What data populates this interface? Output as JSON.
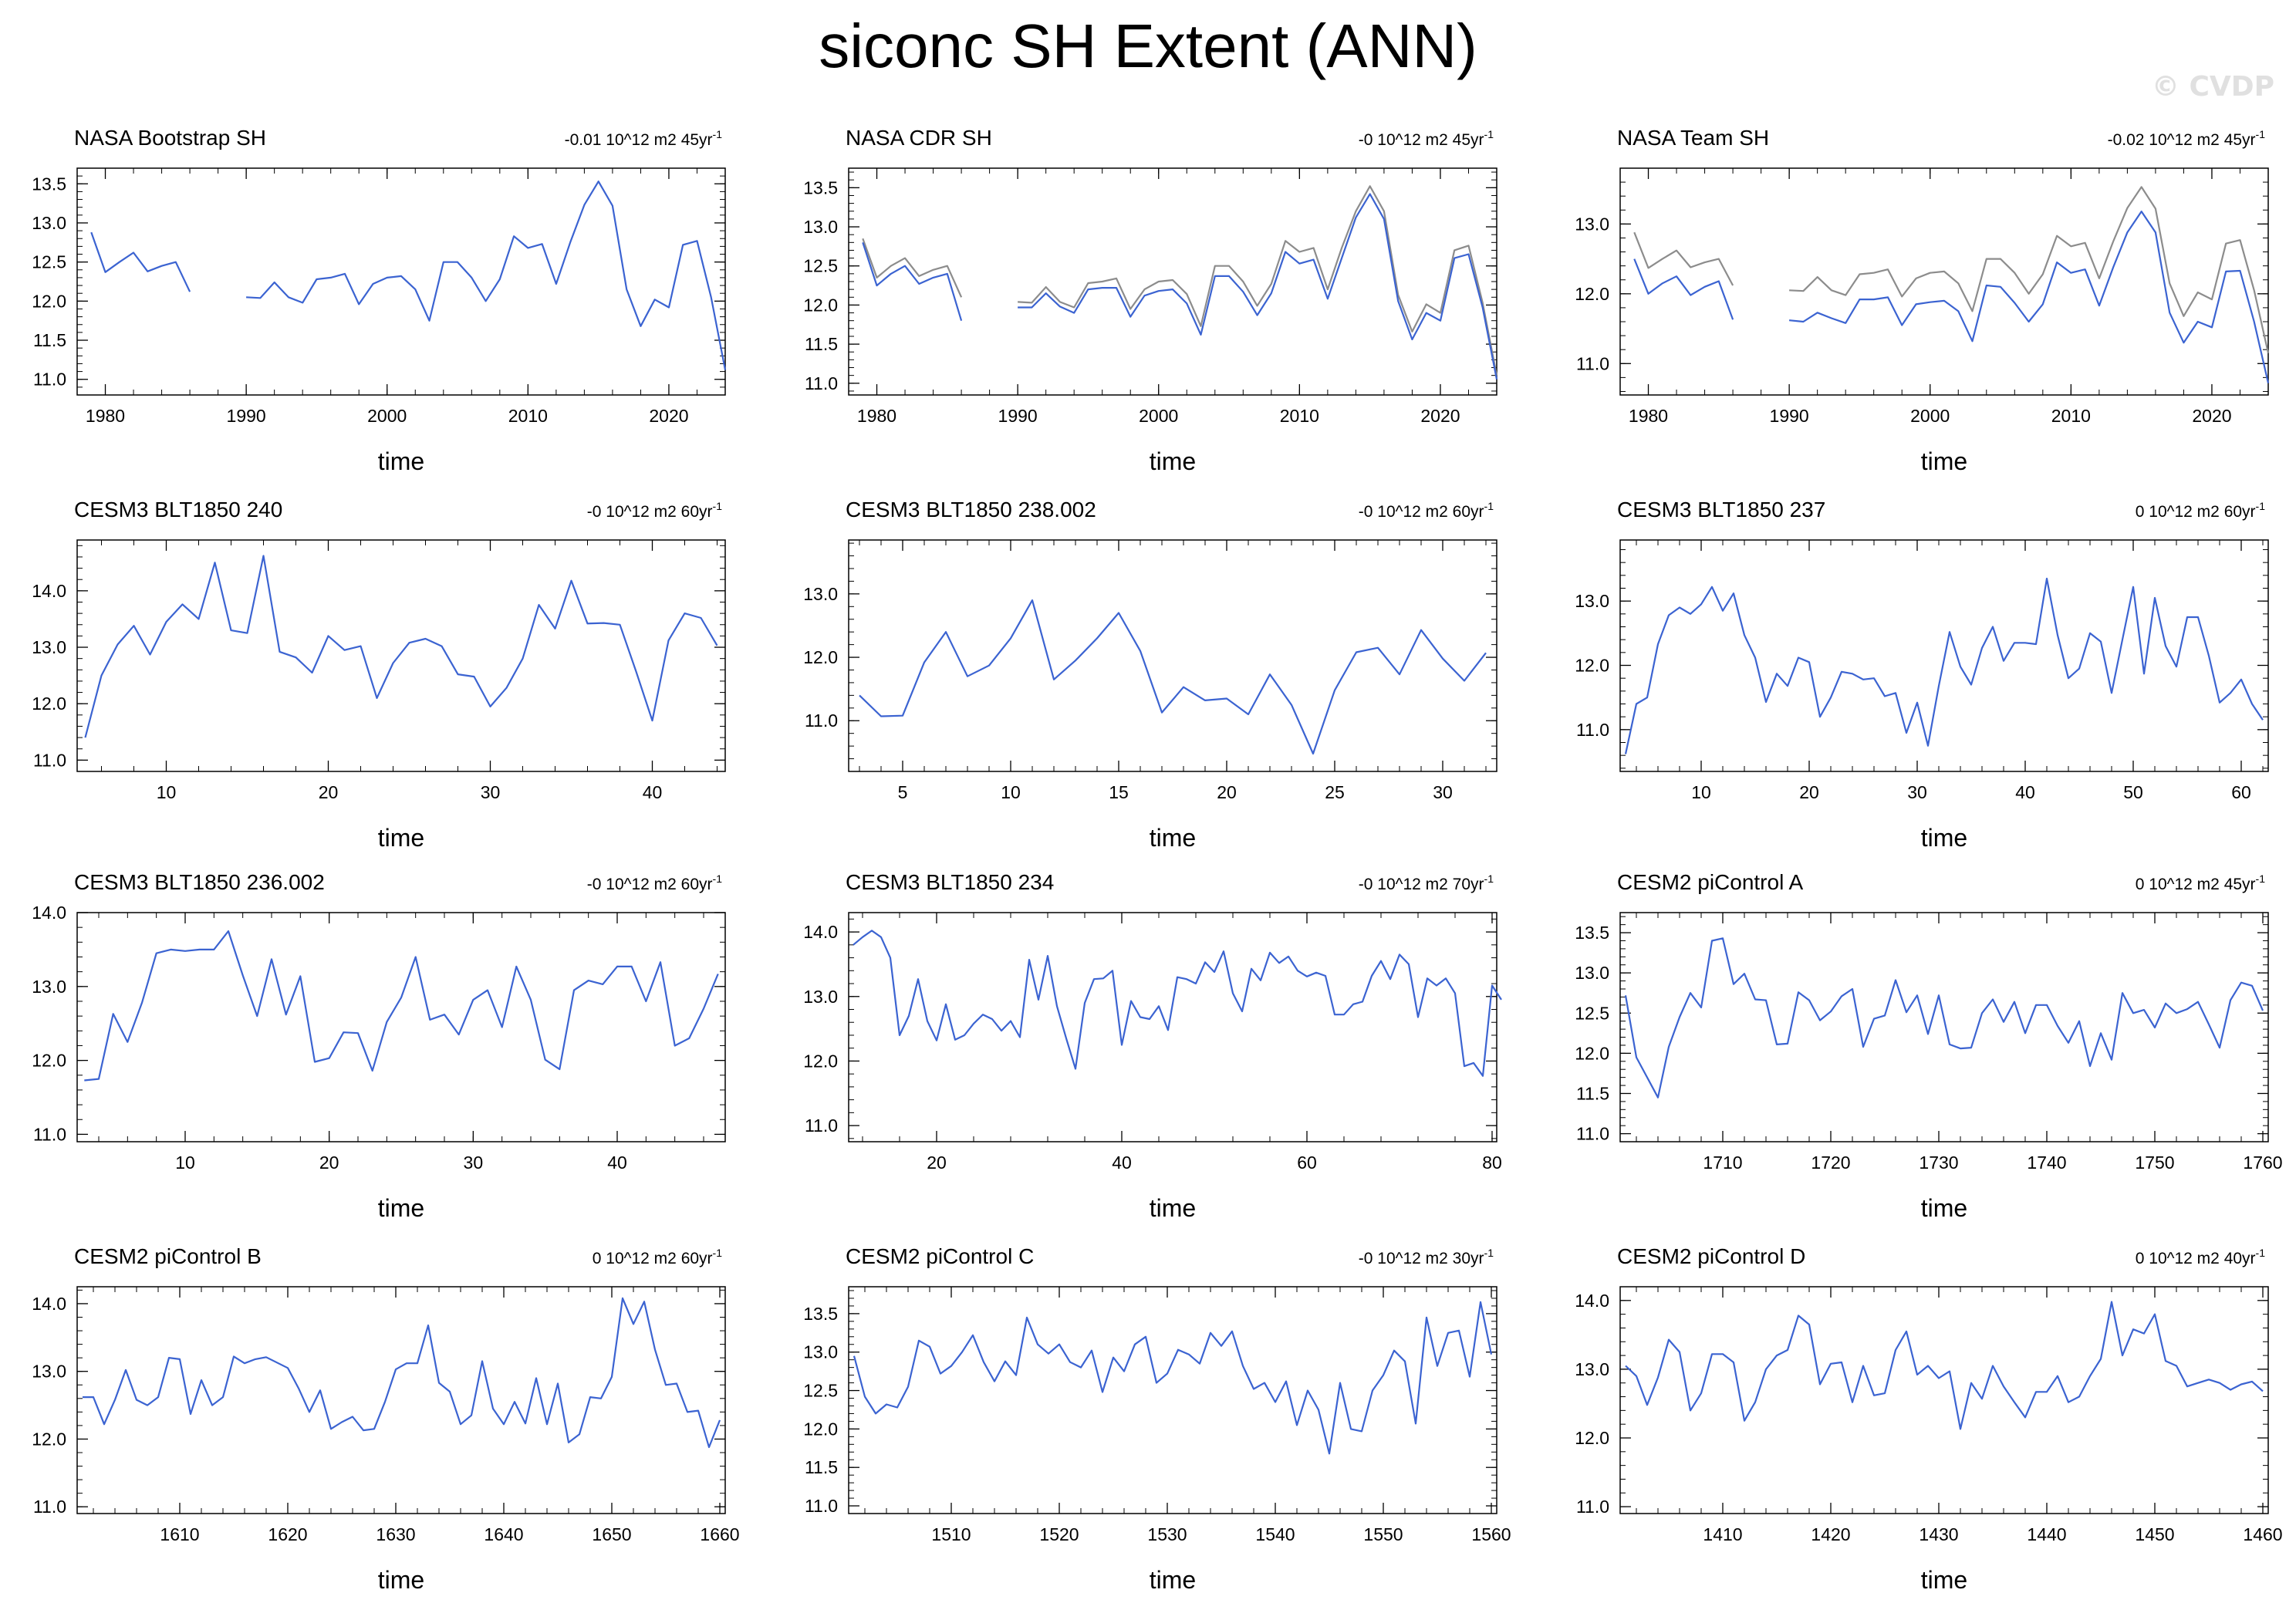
{
  "title": "siconc SH Extent (ANN)",
  "watermark": "© CVDP",
  "colors": {
    "primary": "#3b63d1",
    "secondary": "#8c8c8c",
    "axis": "#000000"
  },
  "chart_data": [
    {
      "type": "line",
      "title": "NASA Bootstrap SH",
      "trend": "-0.01 10^12 m2 45yr",
      "xlabel": "time",
      "xlim": [
        1978,
        2024
      ],
      "ylim": [
        10.8,
        13.7
      ],
      "xticks": [
        1980,
        1990,
        2000,
        2010,
        2020
      ],
      "yticks": [
        11.0,
        11.5,
        12.0,
        12.5,
        13.0,
        13.5
      ],
      "series": [
        {
          "x0": 1979,
          "values": [
            12.88,
            12.37,
            12.5,
            12.62,
            12.38,
            12.45,
            12.5,
            12.12,
            null,
            null,
            null,
            12.05,
            12.04,
            12.24,
            12.05,
            11.98,
            12.28,
            12.3,
            12.35,
            11.96,
            12.22,
            12.3,
            12.32,
            12.15,
            11.75,
            12.5,
            12.5,
            12.3,
            12.0,
            12.28,
            12.83,
            12.68,
            12.73,
            12.22,
            12.75,
            13.23,
            13.53,
            13.22,
            12.15,
            11.68,
            12.02,
            11.92,
            12.72,
            12.77,
            12.05,
            11.12
          ]
        }
      ]
    },
    {
      "type": "line",
      "title": "NASA CDR SH",
      "trend": "-0 10^12 m2 45yr",
      "xlabel": "time",
      "xlim": [
        1978,
        2024
      ],
      "ylim": [
        10.85,
        13.75
      ],
      "xticks": [
        1980,
        1990,
        2000,
        2010,
        2020
      ],
      "yticks": [
        11.0,
        11.5,
        12.0,
        12.5,
        13.0,
        13.5
      ],
      "series": [
        {
          "x0": 1979,
          "values": [
            12.85,
            12.35,
            12.5,
            12.6,
            12.37,
            12.45,
            12.5,
            12.1,
            null,
            null,
            null,
            12.04,
            12.03,
            12.23,
            12.04,
            11.97,
            12.28,
            12.3,
            12.34,
            11.95,
            12.2,
            12.3,
            12.32,
            12.14,
            11.73,
            12.5,
            12.5,
            12.3,
            11.99,
            12.27,
            12.82,
            12.68,
            12.73,
            12.2,
            12.73,
            13.2,
            13.52,
            13.2,
            12.13,
            11.66,
            12.01,
            11.9,
            12.7,
            12.76,
            12.03,
            11.1
          ]
        },
        {
          "x0": 1979,
          "values": [
            12.8,
            12.25,
            12.4,
            12.5,
            12.27,
            12.35,
            12.4,
            11.8,
            null,
            null,
            null,
            11.97,
            11.97,
            12.15,
            11.98,
            11.9,
            12.2,
            12.22,
            12.22,
            11.85,
            12.12,
            12.18,
            12.2,
            12.02,
            11.62,
            12.37,
            12.37,
            12.17,
            11.87,
            12.15,
            12.68,
            12.53,
            12.58,
            12.08,
            12.6,
            13.12,
            13.42,
            13.1,
            12.05,
            11.56,
            11.9,
            11.8,
            12.6,
            12.65,
            11.97,
            11.05
          ]
        }
      ]
    },
    {
      "type": "line",
      "title": "NASA Team SH",
      "trend": "-0.02 10^12 m2 45yr",
      "xlabel": "time",
      "xlim": [
        1978,
        2024
      ],
      "ylim": [
        10.55,
        13.8
      ],
      "xticks": [
        1980,
        1990,
        2000,
        2010,
        2020
      ],
      "yticks": [
        11.0,
        12.0,
        13.0
      ],
      "series": [
        {
          "x0": 1979,
          "values": [
            12.88,
            12.37,
            12.5,
            12.62,
            12.38,
            12.45,
            12.5,
            12.12,
            null,
            null,
            null,
            12.05,
            12.04,
            12.24,
            12.05,
            11.98,
            12.28,
            12.3,
            12.35,
            11.96,
            12.22,
            12.3,
            12.32,
            12.15,
            11.75,
            12.5,
            12.5,
            12.3,
            12.0,
            12.28,
            12.83,
            12.68,
            12.73,
            12.22,
            12.75,
            13.23,
            13.53,
            13.22,
            12.15,
            11.68,
            12.02,
            11.92,
            12.72,
            12.77,
            12.05,
            11.15
          ]
        },
        {
          "x0": 1979,
          "values": [
            12.5,
            12.0,
            12.15,
            12.25,
            11.98,
            12.1,
            12.18,
            11.63,
            null,
            null,
            null,
            11.62,
            11.6,
            11.73,
            11.65,
            11.58,
            11.92,
            11.92,
            11.95,
            11.55,
            11.85,
            11.88,
            11.9,
            11.75,
            11.32,
            12.12,
            12.1,
            11.87,
            11.6,
            11.85,
            12.45,
            12.3,
            12.35,
            11.83,
            12.38,
            12.88,
            13.18,
            12.88,
            11.73,
            11.3,
            11.6,
            11.52,
            12.32,
            12.33,
            11.6,
            10.72
          ]
        }
      ]
    },
    {
      "type": "line",
      "title": "CESM3 BLT1850 240",
      "trend": "-0 10^12 m2 60yr",
      "xlabel": "time",
      "xlim": [
        4.5,
        44.5
      ],
      "ylim": [
        10.8,
        14.9
      ],
      "xticks": [
        10,
        20,
        30,
        40
      ],
      "yticks": [
        11.0,
        12.0,
        13.0,
        14.0
      ],
      "series": [
        {
          "x0": 5,
          "values": [
            11.4,
            12.5,
            13.05,
            13.38,
            12.87,
            13.45,
            13.76,
            13.5,
            14.5,
            13.3,
            13.25,
            14.62,
            12.92,
            12.82,
            12.55,
            13.2,
            12.95,
            13.02,
            12.1,
            12.72,
            13.08,
            13.15,
            13.02,
            12.52,
            12.48,
            11.95,
            12.28,
            12.8,
            13.75,
            13.33,
            14.18,
            13.42,
            13.43,
            13.4,
            12.57,
            11.7,
            13.12,
            13.6,
            13.52,
            13.03
          ]
        }
      ]
    },
    {
      "type": "line",
      "title": "CESM3 BLT1850 238.002",
      "trend": "-0 10^12 m2 60yr",
      "xlabel": "time",
      "xlim": [
        2.5,
        32.5
      ],
      "ylim": [
        10.2,
        13.85
      ],
      "xticks": [
        5,
        10,
        15,
        20,
        25,
        30
      ],
      "yticks": [
        11.0,
        12.0,
        13.0
      ],
      "series": [
        {
          "x0": 3,
          "values": [
            11.4,
            11.07,
            11.08,
            11.92,
            12.4,
            11.7,
            11.87,
            12.3,
            12.9,
            11.65,
            11.95,
            12.3,
            12.7,
            12.1,
            11.13,
            11.53,
            11.32,
            11.35,
            11.1,
            11.73,
            11.25,
            10.48,
            11.48,
            12.08,
            12.15,
            11.73,
            12.43,
            11.98,
            11.63,
            12.07
          ]
        }
      ]
    },
    {
      "type": "line",
      "title": "CESM3 BLT1850 237",
      "trend": "0 10^12 m2 60yr",
      "xlabel": "time",
      "xlim": [
        2.5,
        62.5
      ],
      "ylim": [
        10.35,
        13.95
      ],
      "xticks": [
        10,
        20,
        30,
        40,
        50,
        60
      ],
      "yticks": [
        11.0,
        12.0,
        13.0
      ],
      "series": [
        {
          "x0": 3,
          "values": [
            10.62,
            11.4,
            11.5,
            12.33,
            12.78,
            12.9,
            12.8,
            12.95,
            13.22,
            12.85,
            13.12,
            12.47,
            12.12,
            11.43,
            11.87,
            11.68,
            12.12,
            12.05,
            11.2,
            11.5,
            11.9,
            11.87,
            11.78,
            11.8,
            11.52,
            11.57,
            10.95,
            11.42,
            10.75,
            11.68,
            12.52,
            11.98,
            11.7,
            12.27,
            12.6,
            12.07,
            12.35,
            12.35,
            12.33,
            13.35,
            12.47,
            11.8,
            11.95,
            12.5,
            12.37,
            11.57,
            12.4,
            13.22,
            11.87,
            13.05,
            12.3,
            11.98,
            12.75,
            12.75,
            12.15,
            11.42,
            11.57,
            11.78,
            11.4,
            11.15
          ]
        }
      ]
    },
    {
      "type": "line",
      "title": "CESM3 BLT1850 236.002",
      "trend": "-0 10^12 m2 60yr",
      "xlabel": "time",
      "xlim": [
        2.5,
        47.5
      ],
      "ylim": [
        10.9,
        14.0
      ],
      "xticks": [
        10,
        20,
        30,
        40
      ],
      "yticks": [
        11.0,
        12.0,
        13.0,
        14.0
      ],
      "series": [
        {
          "x0": 3,
          "values": [
            11.73,
            11.75,
            12.63,
            12.25,
            12.78,
            13.45,
            13.5,
            13.48,
            13.5,
            13.5,
            13.75,
            13.15,
            12.6,
            13.37,
            12.62,
            13.14,
            11.98,
            12.03,
            12.38,
            12.37,
            11.86,
            12.52,
            12.85,
            13.4,
            12.55,
            12.62,
            12.35,
            12.82,
            12.95,
            12.45,
            13.27,
            12.82,
            12.01,
            11.88,
            12.95,
            13.08,
            13.03,
            13.27,
            13.27,
            12.8,
            13.33,
            12.2,
            12.3,
            12.7,
            13.17
          ]
        }
      ]
    },
    {
      "type": "line",
      "title": "CESM3 BLT1850 234",
      "trend": "-0 10^12 m2 70yr",
      "xlabel": "time",
      "xlim": [
        10.5,
        80.5
      ],
      "ylim": [
        10.75,
        14.3
      ],
      "xticks": [
        20,
        40,
        60,
        80
      ],
      "yticks": [
        11.0,
        12.0,
        13.0,
        14.0
      ],
      "series": [
        {
          "x0": 11,
          "values": [
            13.8,
            13.92,
            14.02,
            13.92,
            13.6,
            12.4,
            12.7,
            13.27,
            12.62,
            12.32,
            12.88,
            12.33,
            12.4,
            12.58,
            12.72,
            12.65,
            12.47,
            12.62,
            12.37,
            13.57,
            12.95,
            13.63,
            12.85,
            12.35,
            11.88,
            12.9,
            13.27,
            13.28,
            13.4,
            12.25,
            12.93,
            12.68,
            12.65,
            12.85,
            12.48,
            13.3,
            13.27,
            13.2,
            13.53,
            13.38,
            13.7,
            13.05,
            12.77,
            13.43,
            13.25,
            13.68,
            13.52,
            13.62,
            13.4,
            13.31,
            13.37,
            13.32,
            12.72,
            12.72,
            12.88,
            12.92,
            13.32,
            13.55,
            13.27,
            13.65,
            13.5,
            12.68,
            13.28,
            13.17,
            13.28,
            13.05,
            11.92,
            11.97,
            11.77,
            13.17,
            12.95
          ]
        }
      ]
    },
    {
      "type": "line",
      "title": "CESM2 piControl A",
      "trend": "0 10^12 m2 45yr",
      "xlabel": "time",
      "xlim": [
        1700.5,
        1760.5
      ],
      "ylim": [
        10.9,
        13.75
      ],
      "xticks": [
        1710,
        1720,
        1730,
        1740,
        1750,
        1760
      ],
      "yticks": [
        11.0,
        11.5,
        12.0,
        12.5,
        13.0,
        13.5
      ],
      "series": [
        {
          "x0": 1701,
          "values": [
            12.72,
            11.95,
            11.7,
            11.45,
            12.08,
            12.45,
            12.75,
            12.57,
            13.4,
            13.43,
            12.86,
            12.99,
            12.67,
            12.66,
            12.11,
            12.12,
            12.76,
            12.66,
            12.41,
            12.52,
            12.71,
            12.8,
            12.08,
            12.43,
            12.47,
            12.91,
            12.51,
            12.72,
            12.24,
            12.72,
            12.11,
            12.06,
            12.07,
            12.5,
            12.67,
            12.39,
            12.64,
            12.25,
            12.6,
            12.6,
            12.34,
            12.13,
            12.4,
            11.84,
            12.25,
            11.92,
            12.75,
            12.5,
            12.54,
            12.32,
            12.62,
            12.5,
            12.55,
            12.64,
            12.36,
            12.07,
            12.66,
            12.88,
            12.84,
            12.53
          ]
        }
      ]
    },
    {
      "type": "line",
      "title": "CESM2 piControl B",
      "trend": "0 10^12 m2 60yr",
      "xlabel": "time",
      "xlim": [
        1600.5,
        1660.5
      ],
      "ylim": [
        10.9,
        14.25
      ],
      "xticks": [
        1610,
        1620,
        1630,
        1640,
        1650,
        1660
      ],
      "yticks": [
        11.0,
        12.0,
        13.0,
        14.0
      ],
      "series": [
        {
          "x0": 1601,
          "values": [
            12.62,
            12.62,
            12.22,
            12.58,
            13.02,
            12.58,
            12.5,
            12.62,
            13.2,
            13.18,
            12.37,
            12.87,
            12.5,
            12.62,
            13.22,
            13.12,
            13.18,
            13.21,
            13.13,
            13.05,
            12.75,
            12.4,
            12.72,
            12.15,
            12.25,
            12.33,
            12.13,
            12.15,
            12.55,
            13.03,
            13.12,
            13.12,
            13.68,
            12.83,
            12.7,
            12.22,
            12.35,
            13.15,
            12.45,
            12.22,
            12.55,
            12.23,
            12.9,
            12.22,
            12.82,
            11.95,
            12.07,
            12.62,
            12.6,
            12.92,
            14.08,
            13.7,
            14.03,
            13.32,
            12.8,
            12.82,
            12.4,
            12.42,
            11.88,
            12.28
          ]
        }
      ]
    },
    {
      "type": "line",
      "title": "CESM2 piControl C",
      "trend": "-0 10^12 m2 30yr",
      "xlabel": "time",
      "xlim": [
        1500.5,
        1560.5
      ],
      "ylim": [
        10.9,
        13.85
      ],
      "xticks": [
        1510,
        1520,
        1530,
        1540,
        1550,
        1560
      ],
      "yticks": [
        11.0,
        11.5,
        12.0,
        12.5,
        13.0,
        13.5
      ],
      "series": [
        {
          "x0": 1501,
          "values": [
            12.95,
            12.42,
            12.2,
            12.32,
            12.28,
            12.55,
            13.15,
            13.07,
            12.72,
            12.82,
            13.0,
            13.22,
            12.87,
            12.62,
            12.88,
            12.7,
            13.45,
            13.1,
            12.98,
            13.1,
            12.87,
            12.8,
            13.02,
            12.48,
            12.93,
            12.75,
            13.1,
            13.2,
            12.6,
            12.72,
            13.03,
            12.97,
            12.85,
            13.25,
            13.08,
            13.27,
            12.82,
            12.52,
            12.6,
            12.35,
            12.62,
            12.05,
            12.5,
            12.25,
            11.68,
            12.6,
            12.0,
            11.97,
            12.5,
            12.7,
            13.02,
            12.88,
            12.07,
            13.45,
            12.82,
            13.25,
            13.28,
            12.68,
            13.65,
            12.97
          ]
        }
      ]
    },
    {
      "type": "line",
      "title": "CESM2 piControl D",
      "trend": "0 10^12 m2 40yr",
      "xlabel": "time",
      "xlim": [
        1400.5,
        1460.5
      ],
      "ylim": [
        10.9,
        14.2
      ],
      "xticks": [
        1410,
        1420,
        1430,
        1440,
        1450,
        1460
      ],
      "yticks": [
        11.0,
        12.0,
        13.0,
        14.0
      ],
      "series": [
        {
          "x0": 1401,
          "values": [
            13.05,
            12.9,
            12.48,
            12.88,
            13.43,
            13.25,
            12.4,
            12.65,
            13.22,
            13.22,
            13.1,
            12.25,
            12.52,
            13.0,
            13.2,
            13.28,
            13.78,
            13.65,
            12.78,
            13.08,
            13.1,
            12.52,
            13.05,
            12.62,
            12.65,
            13.28,
            13.55,
            12.92,
            13.05,
            12.87,
            12.97,
            12.13,
            12.8,
            12.57,
            13.05,
            12.75,
            12.52,
            12.3,
            12.67,
            12.67,
            12.9,
            12.52,
            12.6,
            12.9,
            13.15,
            13.98,
            13.2,
            13.58,
            13.52,
            13.8,
            13.12,
            13.05,
            12.75,
            12.8,
            12.85,
            12.8,
            12.7,
            12.78,
            12.82,
            12.68
          ]
        }
      ]
    }
  ]
}
